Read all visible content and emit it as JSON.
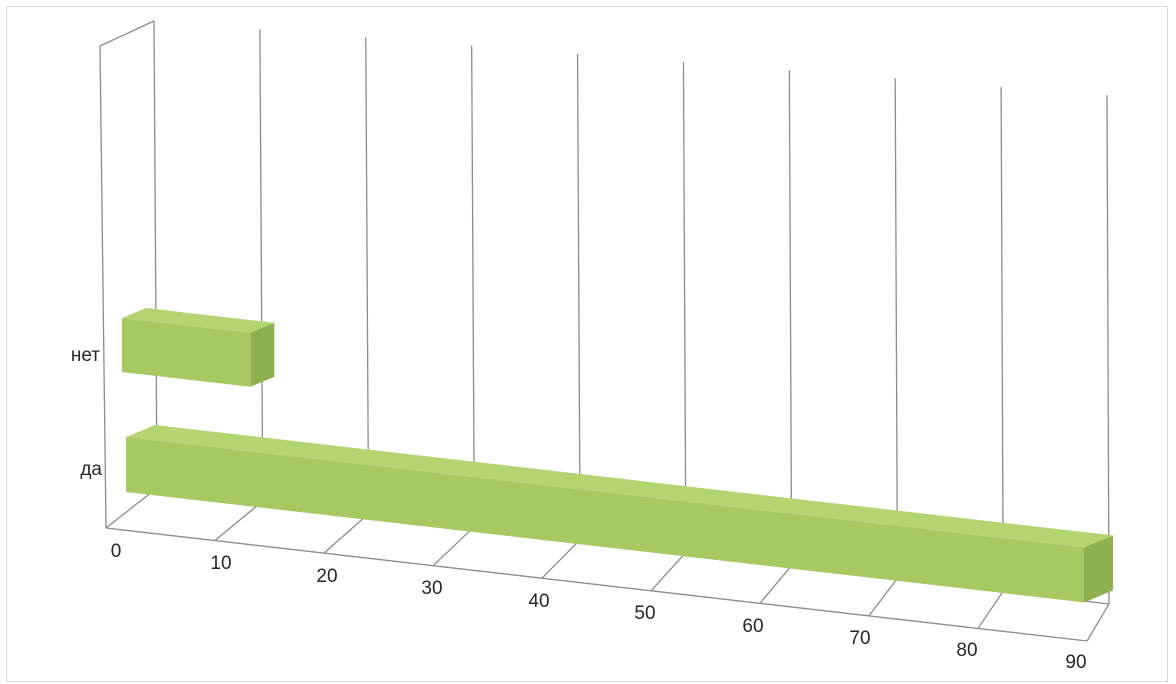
{
  "chart_data": {
    "type": "bar",
    "orientation": "horizontal",
    "style": "3d",
    "categories": [
      "нет",
      "да"
    ],
    "values": [
      12,
      90
    ],
    "x_ticks": [
      "0",
      "10",
      "20",
      "30",
      "40",
      "50",
      "60",
      "70",
      "80",
      "90"
    ],
    "xlim": [
      0,
      90
    ],
    "grid": true,
    "legend": "none",
    "title": "",
    "xlabel": "",
    "ylabel": "",
    "colors": {
      "bar_front": "#a6c962",
      "bar_top": "#b4d472",
      "bar_side": "#8eb04f",
      "grid": "#8c8c8c"
    }
  }
}
